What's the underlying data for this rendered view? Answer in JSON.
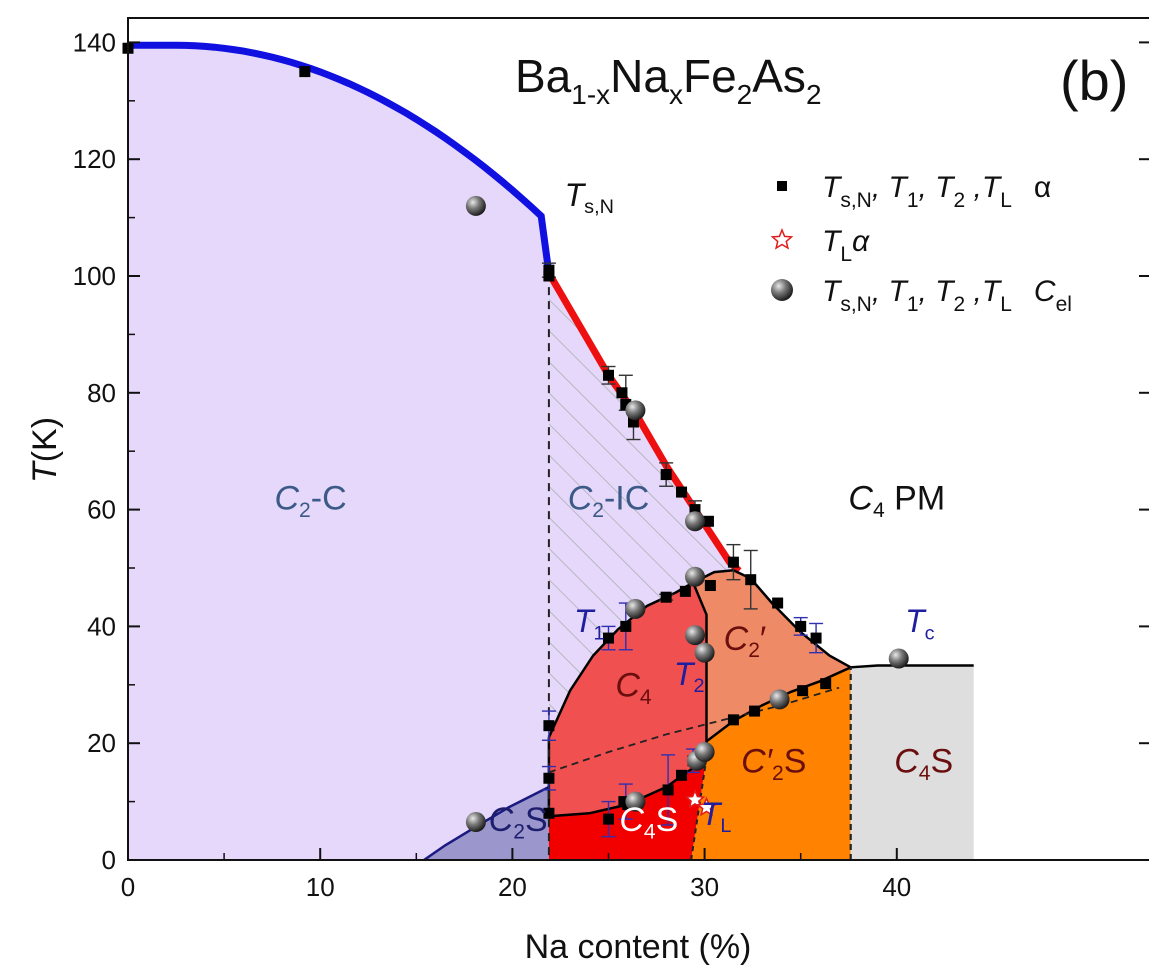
{
  "chart_data": {
    "type": "scatter",
    "title": "",
    "compound": {
      "base": "Ba",
      "s1": "1-x",
      "m1": "Na",
      "s2": "x",
      "m2": "Fe",
      "s3": "2",
      "m3": "As",
      "s4": "2"
    },
    "panel_label": "(b)",
    "xlabel": "Na content (%)",
    "ylabel_main": "T",
    "ylabel_unit": "(K)",
    "xlim": [
      0,
      44
    ],
    "ylim": [
      0,
      145
    ],
    "xticks": [
      0,
      10,
      20,
      30,
      40
    ],
    "yticks": [
      0,
      20,
      40,
      60,
      80,
      100,
      120,
      140
    ],
    "grid": false,
    "legend_position": "top-right",
    "legend": [
      {
        "marker": "square",
        "labels": [
          "T",
          "s,N",
          ", T",
          "1",
          ", T",
          "2",
          " ,T",
          "L",
          "α",
          ""
        ]
      },
      {
        "marker": "star",
        "labels": [
          "T",
          "L",
          "α",
          "",
          "",
          "",
          "",
          "",
          "",
          ""
        ]
      },
      {
        "marker": "sphere",
        "labels": [
          "T",
          "s,N",
          ", T",
          "1",
          ", T",
          "2",
          " ,T",
          "L",
          "C",
          "el"
        ]
      }
    ],
    "region_labels": [
      {
        "main": "C",
        "sub": "2",
        "rest": "-C",
        "x": 9.5,
        "y": 60,
        "color": "#3c5a88"
      },
      {
        "main": "C",
        "sub": "2",
        "rest": "-IC",
        "x": 25,
        "y": 60,
        "color": "#3c5a88"
      },
      {
        "main": "C",
        "sub": "4",
        "rest": " PM",
        "x": 40,
        "y": 60,
        "color": "#111111"
      },
      {
        "main": "C",
        "sub": "4",
        "rest": "",
        "x": 26.3,
        "y": 28,
        "color": "#6a0e0e"
      },
      {
        "main": "C",
        "sub": "2",
        "rest": "′",
        "x": 32.1,
        "y": 36,
        "color": "#6a0e0e"
      },
      {
        "main": "C′",
        "sub": "2",
        "rest": "S",
        "x": 33.6,
        "y": 15,
        "color": "#6a0e0e"
      },
      {
        "main": "C",
        "sub": "4",
        "rest": "S",
        "x": 41.4,
        "y": 15,
        "color": "#6a0e0e"
      },
      {
        "main": "C",
        "sub": "2",
        "rest": "S",
        "x": 20.3,
        "y": 5,
        "color": "#1e1e6e"
      },
      {
        "main": "C",
        "sub": "4",
        "rest": "S",
        "x": 27.1,
        "y": 5,
        "color": "#ffffff"
      }
    ],
    "line_labels": [
      {
        "main": "T",
        "sub": "s,N",
        "x": 24.0,
        "y": 112,
        "color": "#111111"
      },
      {
        "main": "T",
        "sub": "1",
        "x": 24.0,
        "y": 39,
        "color": "#1e1e9e"
      },
      {
        "main": "T",
        "sub": "2",
        "x": 29.2,
        "y": 30,
        "color": "#1e1e9e"
      },
      {
        "main": "T",
        "sub": "c",
        "x": 41.2,
        "y": 39,
        "color": "#1e1e9e"
      },
      {
        "main": "T",
        "sub": "L",
        "x": 30.6,
        "y": 6,
        "color": "#1e1e9e"
      }
    ],
    "series": [
      {
        "name": "α",
        "marker": "square",
        "points": [
          [
            0,
            139
          ],
          [
            9.2,
            135
          ],
          [
            21.9,
            101
          ],
          [
            21.9,
            100
          ],
          [
            25,
            83
          ],
          [
            25.7,
            80
          ],
          [
            25.9,
            78
          ],
          [
            26.3,
            75
          ],
          [
            28,
            66
          ],
          [
            28.8,
            63
          ],
          [
            29.5,
            60
          ],
          [
            30.2,
            58
          ],
          [
            31.5,
            51
          ],
          [
            32.4,
            48
          ],
          [
            33.8,
            44
          ],
          [
            35,
            40
          ],
          [
            35.8,
            38
          ],
          [
            21.9,
            23
          ],
          [
            25,
            38
          ],
          [
            25.9,
            40
          ],
          [
            28,
            45
          ],
          [
            29,
            46
          ],
          [
            30.3,
            47
          ],
          [
            21.9,
            14
          ],
          [
            21.9,
            8
          ],
          [
            25,
            7
          ],
          [
            25.8,
            10
          ],
          [
            26,
            9.5
          ],
          [
            28.1,
            12
          ],
          [
            28.8,
            14.5
          ],
          [
            29.4,
            17
          ],
          [
            31.5,
            24
          ],
          [
            32.6,
            25.5
          ],
          [
            34,
            27.5
          ],
          [
            35.1,
            29
          ],
          [
            36.3,
            30.2
          ]
        ],
        "error_bars": [
          [
            21.9,
            101,
            1.2
          ],
          [
            25,
            83,
            1.5
          ],
          [
            25.9,
            80,
            3
          ],
          [
            26.3,
            75,
            3
          ],
          [
            28,
            66,
            2
          ],
          [
            29.5,
            60,
            1.5
          ],
          [
            31.5,
            51,
            3
          ],
          [
            32.4,
            48,
            5
          ],
          [
            35,
            40,
            1.5
          ],
          [
            35.8,
            38,
            2.5
          ],
          [
            21.9,
            23,
            2.5
          ],
          [
            25,
            38,
            2
          ],
          [
            25.9,
            40,
            4
          ],
          [
            28,
            45,
            0.5
          ],
          [
            21.9,
            14,
            2
          ],
          [
            25,
            7,
            3
          ],
          [
            25.9,
            10,
            3
          ],
          [
            28.1,
            12,
            6
          ],
          [
            29.4,
            17,
            2
          ]
        ]
      },
      {
        "name": "α",
        "marker": "star",
        "points": [
          [
            29.5,
            10.3
          ],
          [
            30.1,
            9
          ]
        ]
      },
      {
        "name": "Cel",
        "marker": "sphere",
        "points": [
          [
            18.1,
            112
          ],
          [
            26.4,
            77
          ],
          [
            29.5,
            58
          ],
          [
            29.5,
            48.5
          ],
          [
            26.4,
            43
          ],
          [
            29.5,
            38.5
          ],
          [
            30,
            35.5
          ],
          [
            29.6,
            17
          ],
          [
            30,
            18.5
          ],
          [
            26.4,
            10
          ],
          [
            18.1,
            6.5
          ],
          [
            33.9,
            27.5
          ],
          [
            40.1,
            34.5
          ]
        ]
      }
    ],
    "colors": {
      "c2c": "#e5d8fa",
      "c4": "#f05050",
      "c2prime": "#ef8a66",
      "c2s": "#9b96cc",
      "c4s": "#f20000",
      "c2primes": "#ff8200",
      "c4s_right": "#dedede",
      "ts_line": "#1010e0",
      "tsn_red": "#ee1010",
      "hatch": "#9aa0a0"
    }
  }
}
